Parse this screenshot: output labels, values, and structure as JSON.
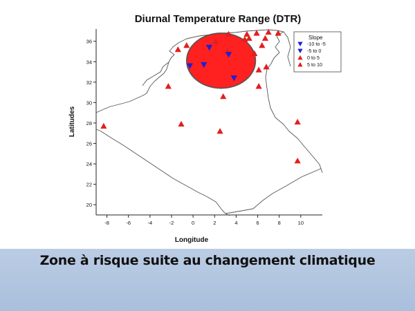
{
  "figure": {
    "title": "Diurnal Temperature Range (DTR)",
    "xlabel": "Longitude",
    "ylabel": "Latitudes",
    "caption": "Zone à risque suite au changement climatique"
  },
  "legend": {
    "title": "Slope",
    "entries": [
      {
        "label": "-10  to  -5",
        "symbol": "triangle-down",
        "color": "#1f1fd6"
      },
      {
        "label": "-5  to  0",
        "symbol": "triangle-down",
        "color": "#1f1fd6"
      },
      {
        "label": "0  to  5",
        "symbol": "triangle-up",
        "color": "#e31e1e"
      },
      {
        "label": "5  to  10",
        "symbol": "triangle-up",
        "color": "#e31e1e"
      }
    ]
  },
  "colors": {
    "increase": "#e31e1e",
    "decrease": "#1f1fd6",
    "risk_zone_fill": "#ff2020",
    "risk_zone_border": "#555555",
    "border_line": "#555555"
  },
  "chart_data": {
    "type": "scatter",
    "xlim": [
      -9,
      12
    ],
    "ylim": [
      19,
      37.2
    ],
    "xticks": [
      -8,
      -6,
      -4,
      -2,
      0,
      2,
      4,
      6,
      8,
      10
    ],
    "yticks": [
      20,
      22,
      24,
      26,
      28,
      30,
      32,
      34,
      36
    ],
    "risk_zone": {
      "center_lon": 2.6,
      "center_lat": 34.1,
      "radius_lon": 3.2,
      "radius_lat": 2.7
    },
    "stations": [
      {
        "lon": -8.3,
        "lat": 27.7,
        "slope": "up"
      },
      {
        "lon": -1.1,
        "lat": 27.9,
        "slope": "up"
      },
      {
        "lon": 2.5,
        "lat": 27.2,
        "slope": "up"
      },
      {
        "lon": -2.3,
        "lat": 31.6,
        "slope": "up"
      },
      {
        "lon": 2.8,
        "lat": 30.6,
        "slope": "up"
      },
      {
        "lon": -1.4,
        "lat": 35.2,
        "slope": "up"
      },
      {
        "lon": -0.6,
        "lat": 35.6,
        "slope": "up"
      },
      {
        "lon": 3.3,
        "lat": 36.7,
        "slope": "up"
      },
      {
        "lon": 5.0,
        "lat": 36.7,
        "slope": "up"
      },
      {
        "lon": 5.9,
        "lat": 36.8,
        "slope": "up"
      },
      {
        "lon": 7.0,
        "lat": 36.9,
        "slope": "up"
      },
      {
        "lon": 7.9,
        "lat": 36.8,
        "slope": "up"
      },
      {
        "lon": 4.8,
        "lat": 36.2,
        "slope": "up"
      },
      {
        "lon": 5.2,
        "lat": 36.3,
        "slope": "up"
      },
      {
        "lon": 6.7,
        "lat": 36.3,
        "slope": "up"
      },
      {
        "lon": 6.4,
        "lat": 35.6,
        "slope": "up"
      },
      {
        "lon": 5.7,
        "lat": 34.8,
        "slope": "up"
      },
      {
        "lon": 6.1,
        "lat": 33.2,
        "slope": "up"
      },
      {
        "lon": 6.8,
        "lat": 33.5,
        "slope": "up"
      },
      {
        "lon": 6.1,
        "lat": 31.6,
        "slope": "up"
      },
      {
        "lon": 9.7,
        "lat": 28.1,
        "slope": "up"
      },
      {
        "lon": 9.7,
        "lat": 24.3,
        "slope": "up"
      },
      {
        "lon": 2.1,
        "lat": 36.0,
        "slope": "up"
      },
      {
        "lon": 3.2,
        "lat": 35.0,
        "slope": "up"
      },
      {
        "lon": -0.3,
        "lat": 33.6,
        "slope": "down"
      },
      {
        "lon": 1.0,
        "lat": 33.7,
        "slope": "down"
      },
      {
        "lon": 1.5,
        "lat": 35.4,
        "slope": "down"
      },
      {
        "lon": 3.3,
        "lat": 34.7,
        "slope": "down"
      },
      {
        "lon": 3.8,
        "lat": 32.4,
        "slope": "down"
      }
    ]
  }
}
